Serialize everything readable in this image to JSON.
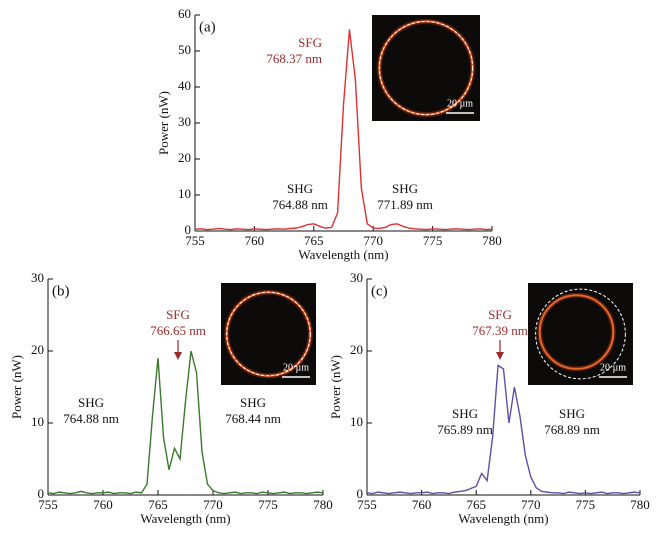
{
  "chart_data": [
    {
      "type": "line",
      "panel": "(a)",
      "xlabel": "Wavelength (nm)",
      "ylabel": "Power (nW)",
      "color": "#e03030",
      "x": [
        755,
        755.5,
        756,
        756.5,
        757,
        757.5,
        758,
        758.5,
        759,
        759.5,
        760,
        760.5,
        761,
        761.5,
        762,
        762.5,
        763,
        763.5,
        764,
        764.5,
        765,
        765.5,
        766,
        766.5,
        767,
        767.5,
        768,
        768.5,
        769,
        769.5,
        770,
        770.5,
        771,
        771.5,
        772,
        772.5,
        773,
        773.5,
        774,
        774.5,
        775,
        775.5,
        776,
        776.5,
        777,
        777.5,
        778,
        778.5,
        779,
        779.5,
        780
      ],
      "values": [
        0.5,
        0.6,
        0.4,
        0.5,
        0.7,
        0.5,
        0.4,
        0.6,
        0.5,
        0.4,
        0.6,
        0.5,
        0.4,
        0.5,
        0.6,
        0.5,
        0.7,
        0.8,
        1.2,
        1.8,
        2.0,
        1.3,
        0.8,
        1.0,
        5,
        35,
        56,
        42,
        12,
        2,
        0.8,
        0.7,
        1.0,
        1.8,
        2.0,
        1.3,
        0.8,
        0.6,
        0.5,
        0.4,
        0.6,
        0.5,
        0.4,
        0.5,
        0.6,
        0.5,
        0.4,
        0.5,
        0.6,
        0.4,
        0.5
      ],
      "xlim": [
        755,
        780
      ],
      "ylim": [
        0,
        60
      ],
      "xticks": [
        755,
        760,
        765,
        770,
        775,
        780
      ],
      "yticks": [
        0,
        10,
        20,
        30,
        40,
        50,
        60
      ],
      "annotations": [
        {
          "lines": [
            "SFG",
            "768.37 nm"
          ]
        },
        {
          "lines": [
            "SHG",
            "764.88 nm"
          ]
        },
        {
          "lines": [
            "SHG",
            "771.89 nm"
          ]
        }
      ],
      "inset_scale": "20 µm"
    },
    {
      "type": "line",
      "panel": "(b)",
      "xlabel": "Wavelength (nm)",
      "ylabel": "Power (nW)",
      "color": "#3a7a2e",
      "x": [
        755,
        755.5,
        756,
        756.5,
        757,
        757.5,
        758,
        758.5,
        759,
        759.5,
        760,
        760.5,
        761,
        761.5,
        762,
        762.5,
        763,
        763.5,
        764,
        764.5,
        765,
        765.5,
        766,
        766.5,
        767,
        767.5,
        768,
        768.5,
        769,
        769.5,
        770,
        770.5,
        771,
        771.5,
        772,
        772.5,
        773,
        773.5,
        774,
        774.5,
        775,
        775.5,
        776,
        776.5,
        777,
        777.5,
        778,
        778.5,
        779,
        779.5,
        780
      ],
      "values": [
        0.3,
        0.2,
        0.4,
        0.3,
        0.2,
        0.3,
        0.5,
        0.3,
        0.2,
        0.3,
        0.3,
        0.4,
        0.2,
        0.3,
        0.3,
        0.2,
        0.4,
        0.3,
        1.5,
        11,
        19,
        8,
        3.5,
        6.5,
        5,
        13,
        20,
        17,
        6,
        1.5,
        0.6,
        0.3,
        0.2,
        0.3,
        0.4,
        0.2,
        0.3,
        0.3,
        0.2,
        0.4,
        0.3,
        0.2,
        0.3,
        0.4,
        0.2,
        0.3,
        0.3,
        0.2,
        0.3,
        0.4,
        0.3
      ],
      "xlim": [
        755,
        780
      ],
      "ylim": [
        0,
        30
      ],
      "xticks": [
        755,
        760,
        765,
        770,
        775,
        780
      ],
      "yticks": [
        0,
        10,
        20,
        30
      ],
      "annotations": [
        {
          "lines": [
            "SFG",
            "766.65 nm"
          ]
        },
        {
          "lines": [
            "SHG",
            "764.88 nm"
          ]
        },
        {
          "lines": [
            "SHG",
            "768.44 nm"
          ]
        }
      ],
      "inset_scale": "20 µm"
    },
    {
      "type": "line",
      "panel": "(c)",
      "xlabel": "Wavelength (nm)",
      "ylabel": "Power (nW)",
      "color": "#5a50a8",
      "x": [
        755,
        755.5,
        756,
        756.5,
        757,
        757.5,
        758,
        758.5,
        759,
        759.5,
        760,
        760.5,
        761,
        761.5,
        762,
        762.5,
        763,
        763.5,
        764,
        764.5,
        765,
        765.5,
        766,
        766.5,
        767,
        767.5,
        768,
        768.5,
        769,
        769.5,
        770,
        770.5,
        771,
        771.5,
        772,
        772.5,
        773,
        773.5,
        774,
        774.5,
        775,
        775.5,
        776,
        776.5,
        777,
        777.5,
        778,
        778.5,
        779,
        779.5,
        780
      ],
      "values": [
        0.3,
        0.2,
        0.4,
        0.3,
        0.2,
        0.3,
        0.4,
        0.3,
        0.2,
        0.3,
        0.3,
        0.4,
        0.2,
        0.3,
        0.3,
        0.2,
        0.4,
        0.5,
        0.6,
        0.9,
        1.2,
        3,
        2,
        8,
        18,
        17.5,
        10,
        15,
        11,
        5.5,
        2.5,
        1,
        0.5,
        0.4,
        0.3,
        0.3,
        0.2,
        0.4,
        0.3,
        0.2,
        0.3,
        0.2,
        0.3,
        0.4,
        0.2,
        0.3,
        0.3,
        0.2,
        0.3,
        0.4,
        0.3
      ],
      "xlim": [
        755,
        780
      ],
      "ylim": [
        0,
        30
      ],
      "xticks": [
        755,
        760,
        765,
        770,
        775,
        780
      ],
      "yticks": [
        0,
        10,
        20,
        30
      ],
      "annotations": [
        {
          "lines": [
            "SFG",
            "767.39 nm"
          ]
        },
        {
          "lines": [
            "SHG",
            "765.89 nm"
          ]
        },
        {
          "lines": [
            "SHG",
            "768.89 nm"
          ]
        }
      ],
      "inset_scale": "20 µm"
    }
  ]
}
